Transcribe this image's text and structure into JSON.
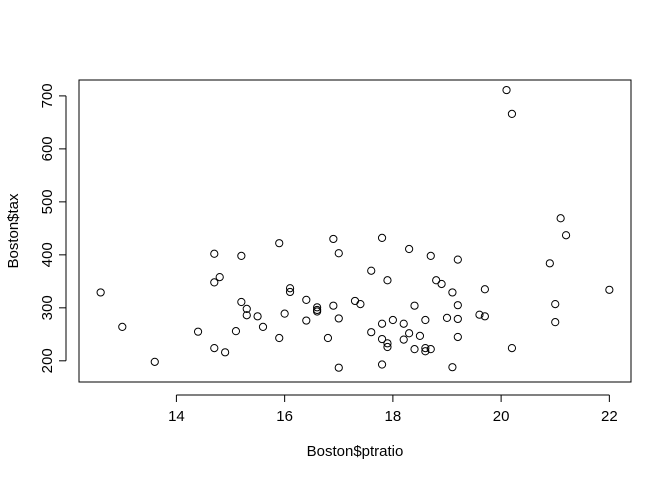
{
  "chart_data": {
    "type": "scatter",
    "title": "",
    "xlabel": "Boston$ptratio",
    "ylabel": "Boston$tax",
    "xlim": [
      12.2,
      22.4
    ],
    "ylim": [
      160,
      730
    ],
    "x_ticks": [
      14,
      16,
      18,
      20,
      22
    ],
    "y_ticks": [
      200,
      300,
      400,
      500,
      600,
      700
    ],
    "grid": false,
    "marker": "open-circle",
    "color": "#000000",
    "points": [
      [
        12.6,
        329
      ],
      [
        13.0,
        264
      ],
      [
        13.6,
        198
      ],
      [
        14.4,
        255
      ],
      [
        14.7,
        402
      ],
      [
        14.7,
        348
      ],
      [
        14.7,
        224
      ],
      [
        14.8,
        358
      ],
      [
        14.9,
        216
      ],
      [
        15.1,
        256
      ],
      [
        15.2,
        398
      ],
      [
        15.2,
        311
      ],
      [
        15.3,
        298
      ],
      [
        15.3,
        286
      ],
      [
        15.5,
        284
      ],
      [
        15.6,
        264
      ],
      [
        15.9,
        422
      ],
      [
        15.9,
        243
      ],
      [
        16.0,
        289
      ],
      [
        16.1,
        337
      ],
      [
        16.1,
        330
      ],
      [
        16.4,
        315
      ],
      [
        16.4,
        276
      ],
      [
        16.6,
        301
      ],
      [
        16.6,
        296
      ],
      [
        16.6,
        293
      ],
      [
        16.8,
        243
      ],
      [
        16.9,
        430
      ],
      [
        16.9,
        304
      ],
      [
        17.0,
        403
      ],
      [
        17.0,
        280
      ],
      [
        17.0,
        187
      ],
      [
        17.3,
        313
      ],
      [
        17.4,
        307
      ],
      [
        17.6,
        370
      ],
      [
        17.6,
        254
      ],
      [
        17.8,
        432
      ],
      [
        17.8,
        270
      ],
      [
        17.8,
        241
      ],
      [
        17.8,
        193
      ],
      [
        17.9,
        352
      ],
      [
        17.9,
        233
      ],
      [
        17.9,
        226
      ],
      [
        18.0,
        277
      ],
      [
        18.2,
        270
      ],
      [
        18.2,
        240
      ],
      [
        18.3,
        411
      ],
      [
        18.3,
        252
      ],
      [
        18.4,
        304
      ],
      [
        18.4,
        222
      ],
      [
        18.5,
        247
      ],
      [
        18.6,
        277
      ],
      [
        18.6,
        224
      ],
      [
        18.6,
        218
      ],
      [
        18.7,
        398
      ],
      [
        18.7,
        222
      ],
      [
        18.8,
        352
      ],
      [
        18.9,
        345
      ],
      [
        19.0,
        281
      ],
      [
        19.1,
        329
      ],
      [
        19.1,
        188
      ],
      [
        19.2,
        391
      ],
      [
        19.2,
        305
      ],
      [
        19.2,
        279
      ],
      [
        19.2,
        245
      ],
      [
        19.6,
        287
      ],
      [
        19.7,
        335
      ],
      [
        19.7,
        284
      ],
      [
        20.1,
        711
      ],
      [
        20.2,
        666
      ],
      [
        20.2,
        224
      ],
      [
        20.9,
        384
      ],
      [
        21.0,
        307
      ],
      [
        21.0,
        273
      ],
      [
        21.1,
        469
      ],
      [
        21.2,
        437
      ],
      [
        22.0,
        334
      ]
    ]
  }
}
